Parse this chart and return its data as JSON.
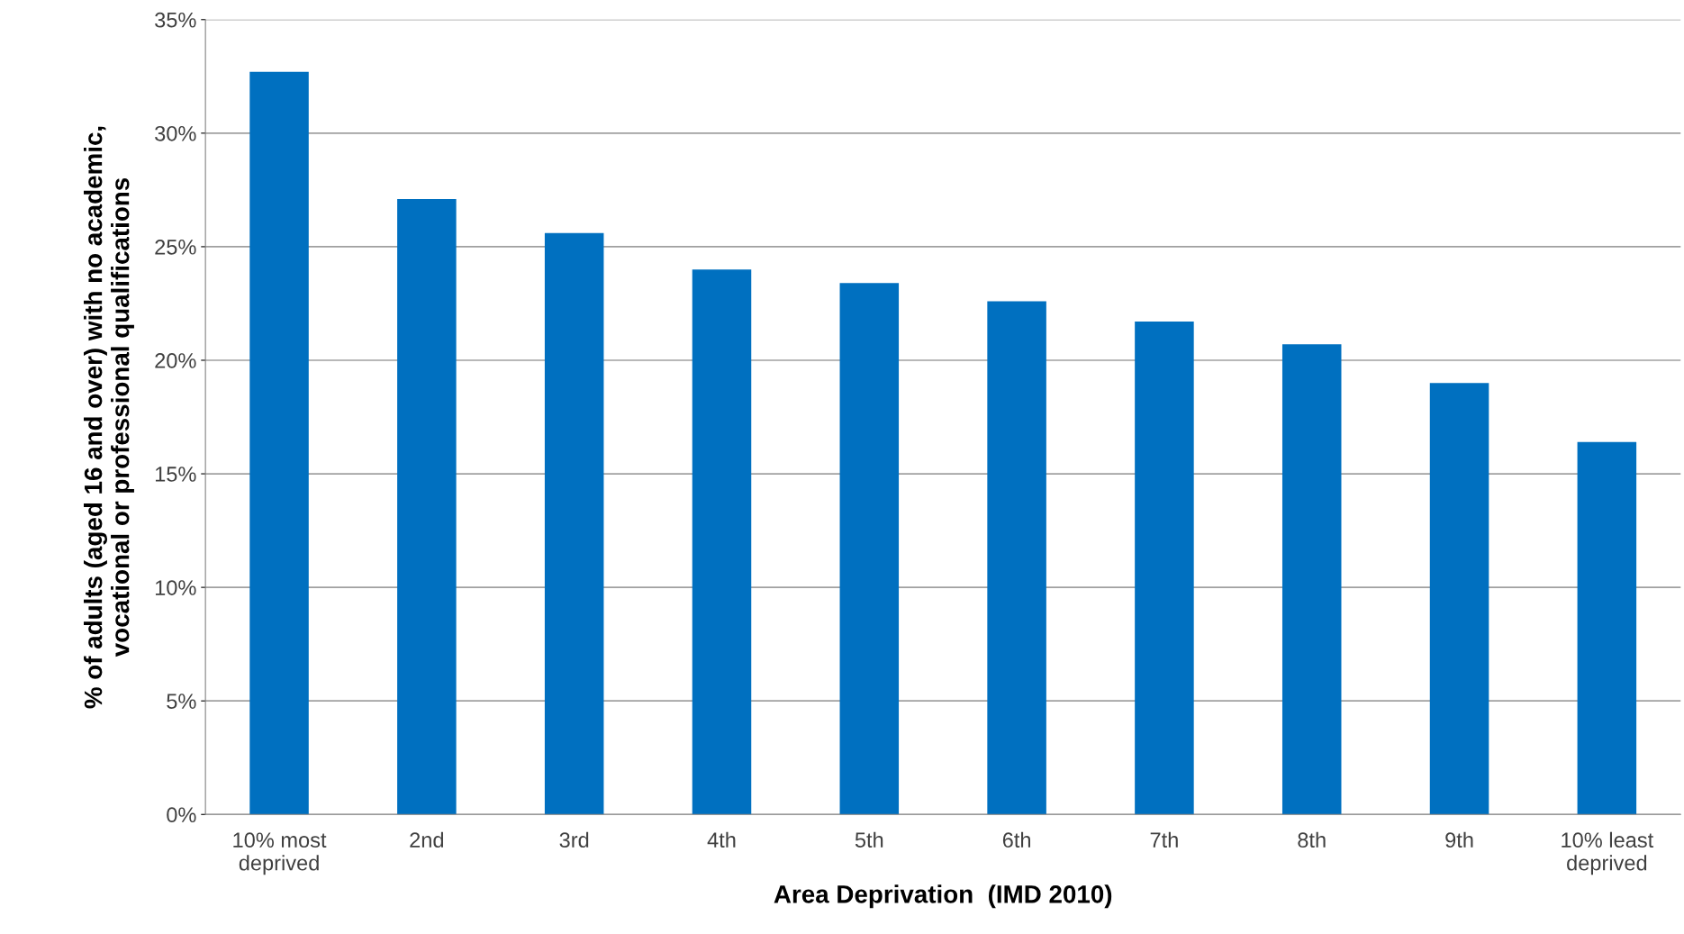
{
  "chart_data": {
    "type": "bar",
    "xlabel": "Area Deprivation  (IMD 2010)",
    "ylabel": "% of adults (aged 16 and over) with no academic,\nvocational or professional qualifications",
    "categories": [
      "10% most\ndeprived",
      "2nd",
      "3rd",
      "4th",
      "5th",
      "6th",
      "7th",
      "8th",
      "9th",
      "10% least\ndeprived"
    ],
    "values": [
      32.7,
      27.1,
      25.6,
      24.0,
      23.4,
      22.6,
      21.7,
      20.7,
      19.0,
      16.4
    ],
    "color": "#0070c0",
    "ylim": [
      0,
      35
    ],
    "yticks": [
      {
        "value": 0,
        "label": "0%"
      },
      {
        "value": 5,
        "label": "5%"
      },
      {
        "value": 10,
        "label": "10%"
      },
      {
        "value": 15,
        "label": "15%"
      },
      {
        "value": 20,
        "label": "20%"
      },
      {
        "value": 25,
        "label": "25%"
      },
      {
        "value": 30,
        "label": "30%"
      },
      {
        "value": 35,
        "label": "35%"
      }
    ],
    "grid": "y"
  }
}
